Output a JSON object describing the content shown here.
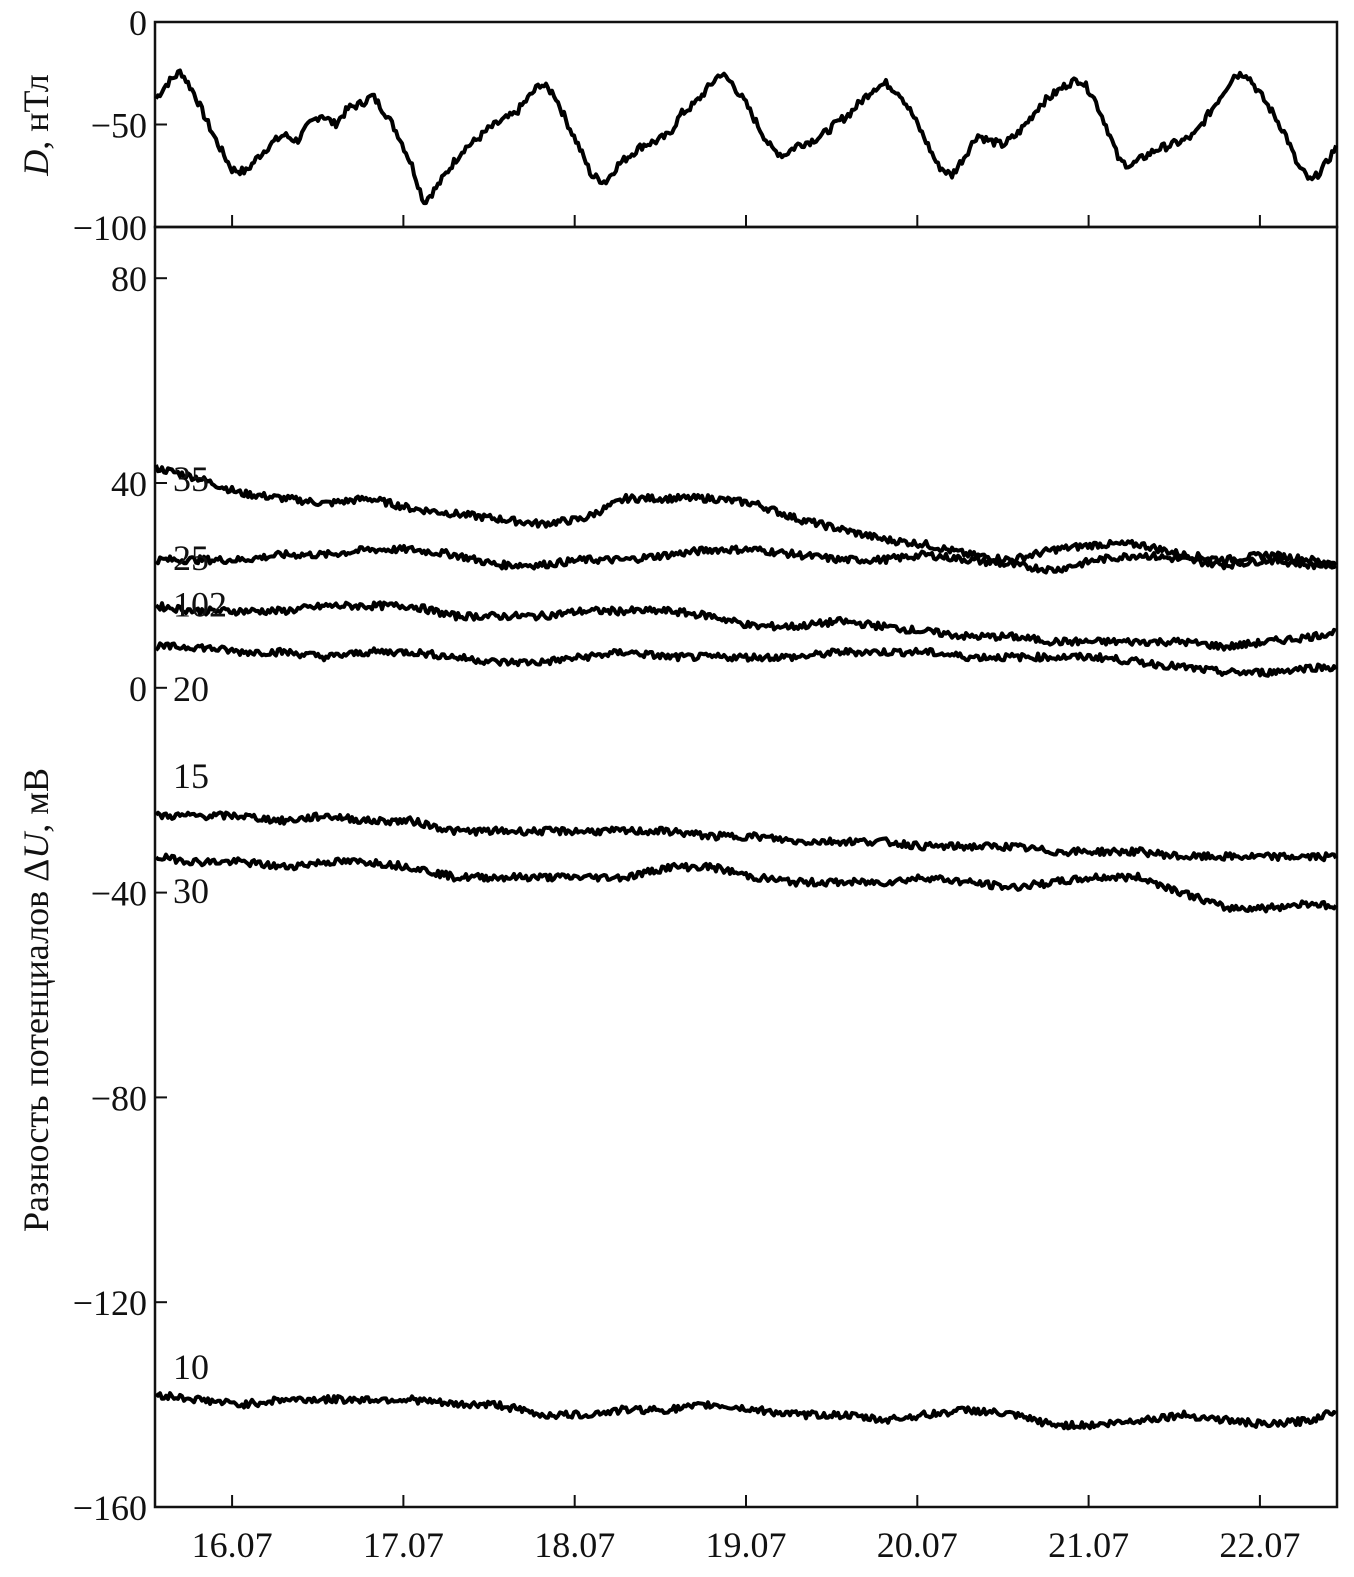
{
  "chart_data": [
    {
      "type": "line",
      "ylabel": "D, нТл",
      "ylabel_parts": {
        "italic": "D",
        "rest": ", нТл"
      },
      "ylim": [
        -100,
        0
      ],
      "yticks": [
        0,
        -50,
        -100
      ],
      "ytick_labels": [
        "0",
        "−50",
        "−100"
      ],
      "series": [
        {
          "x": [
            15.55,
            15.62,
            15.7,
            15.78,
            15.85,
            15.92,
            16.0,
            16.08,
            16.15,
            16.22,
            16.3,
            16.38,
            16.45,
            16.52,
            16.6,
            16.68,
            16.75,
            16.82,
            16.9,
            16.97,
            17.05,
            17.12,
            17.2,
            17.28,
            17.35,
            17.42,
            17.5,
            17.58,
            17.65,
            17.72,
            17.8,
            17.88,
            17.95,
            18.02,
            18.1,
            18.18,
            18.25,
            18.32,
            18.4,
            18.48,
            18.55,
            18.62,
            18.7,
            18.78,
            18.85,
            18.92,
            19.0,
            19.08,
            19.15,
            19.22,
            19.3,
            19.38,
            19.45,
            19.52,
            19.6,
            19.68,
            19.75,
            19.82,
            19.9,
            19.97,
            20.05,
            20.12,
            20.2,
            20.28,
            20.35,
            20.42,
            20.5,
            20.58,
            20.65,
            20.72,
            20.8,
            20.88,
            20.95,
            21.02,
            21.1,
            21.18,
            21.25,
            21.32,
            21.4,
            21.48,
            21.55,
            21.62,
            21.7,
            21.78,
            21.85,
            21.92,
            22.0,
            22.08,
            22.15,
            22.22,
            22.3,
            22.38,
            22.45,
            22.52,
            22.6,
            22.68
          ],
          "values": [
            -38,
            -30,
            -24,
            -35,
            -48,
            -60,
            -72,
            -73,
            -66,
            -60,
            -55,
            -58,
            -50,
            -45,
            -50,
            -42,
            -40,
            -36,
            -45,
            -55,
            -70,
            -88,
            -80,
            -70,
            -62,
            -58,
            -52,
            -48,
            -45,
            -38,
            -30,
            -35,
            -48,
            -60,
            -75,
            -78,
            -70,
            -65,
            -60,
            -58,
            -55,
            -45,
            -40,
            -32,
            -25,
            -30,
            -40,
            -52,
            -62,
            -65,
            -60,
            -58,
            -55,
            -50,
            -45,
            -38,
            -32,
            -30,
            -35,
            -45,
            -58,
            -70,
            -75,
            -65,
            -55,
            -58,
            -60,
            -55,
            -48,
            -40,
            -35,
            -30,
            -28,
            -35,
            -50,
            -68,
            -70,
            -66,
            -62,
            -60,
            -58,
            -55,
            -45,
            -35,
            -26,
            -25,
            -35,
            -45,
            -55,
            -70,
            -78,
            -70,
            -60,
            -55,
            -52,
            -50
          ]
        }
      ]
    },
    {
      "type": "line",
      "ylabel": "Разность потенциалов ΔU, мВ",
      "ylabel_parts": {
        "pre": "Разность потенциалов Δ",
        "italic": "U",
        "rest": ", мВ"
      },
      "ylim": [
        -160,
        90
      ],
      "yticks": [
        80,
        40,
        0,
        -40,
        -80,
        -120,
        -160
      ],
      "ytick_labels": [
        "80",
        "40",
        "0",
        "−40",
        "−80",
        "−120",
        "−160"
      ],
      "xlim": [
        15.55,
        22.45
      ],
      "xticks": [
        16,
        17,
        18,
        19,
        20,
        21,
        22
      ],
      "xtick_labels": [
        "16.07",
        "17.07",
        "18.07",
        "19.07",
        "20.07",
        "21.07",
        "22.07"
      ],
      "x": [
        15.55,
        15.8,
        16.05,
        16.3,
        16.55,
        16.8,
        17.05,
        17.3,
        17.55,
        17.8,
        18.05,
        18.3,
        18.55,
        18.8,
        19.05,
        19.3,
        19.55,
        19.8,
        20.05,
        20.3,
        20.55,
        20.8,
        21.05,
        21.3,
        21.55,
        21.8,
        22.05,
        22.3,
        22.45
      ],
      "series": [
        {
          "name": "35",
          "label_at": 41,
          "values": [
            43,
            41,
            38,
            37,
            36,
            37,
            35,
            34,
            33,
            32,
            33,
            37,
            37,
            37,
            36,
            33,
            31,
            29,
            28,
            26,
            25,
            27,
            28,
            28,
            26,
            25,
            26,
            25,
            24
          ]
        },
        {
          "name": "25",
          "label_at": 25.5,
          "values": [
            25,
            25,
            25,
            26,
            26,
            27,
            27,
            26,
            24,
            24,
            25,
            25,
            26,
            27,
            27,
            26,
            25,
            25,
            26,
            25,
            24,
            23,
            25,
            26,
            25,
            24,
            25,
            24,
            24
          ]
        },
        {
          "name": "102",
          "label_at": 16.5,
          "values": [
            16,
            15,
            15,
            15,
            16,
            16,
            16,
            14,
            14,
            14,
            15,
            15,
            15,
            14,
            12,
            12,
            13,
            12,
            11,
            10,
            10,
            9,
            9,
            9,
            9,
            8,
            9,
            10,
            11
          ]
        },
        {
          "name": "20",
          "label_at": 0,
          "values": [
            8,
            8,
            7,
            7,
            6,
            7,
            7,
            6,
            5,
            5,
            6,
            7,
            6,
            6,
            6,
            6,
            7,
            7,
            7,
            6,
            6,
            6,
            6,
            5,
            4,
            3,
            3,
            4,
            4
          ]
        },
        {
          "name": "15",
          "label_at": -17,
          "values": [
            -25,
            -25,
            -25,
            -26,
            -25,
            -26,
            -26,
            -28,
            -28,
            -28,
            -28,
            -28,
            -28,
            -29,
            -29,
            -30,
            -30,
            -30,
            -31,
            -31,
            -31,
            -32,
            -32,
            -32,
            -33,
            -33,
            -33,
            -33,
            -33
          ]
        },
        {
          "name": "30",
          "label_at": -39.5,
          "values": [
            -33,
            -34,
            -34,
            -35,
            -34,
            -34,
            -35,
            -37,
            -37,
            -37,
            -37,
            -37,
            -35,
            -35,
            -37,
            -38,
            -38,
            -38,
            -37,
            -38,
            -39,
            -38,
            -37,
            -37,
            -40,
            -43,
            -43,
            -42,
            -43
          ]
        },
        {
          "name": "10",
          "label_at": -132.5,
          "values": [
            -138,
            -139,
            -140,
            -139,
            -139,
            -139,
            -139,
            -140,
            -140,
            -142,
            -142,
            -141,
            -141,
            -140,
            -141,
            -142,
            -142,
            -143,
            -142,
            -141,
            -142,
            -144,
            -144,
            -143,
            -142,
            -143,
            -144,
            -143,
            -141
          ]
        }
      ]
    }
  ]
}
